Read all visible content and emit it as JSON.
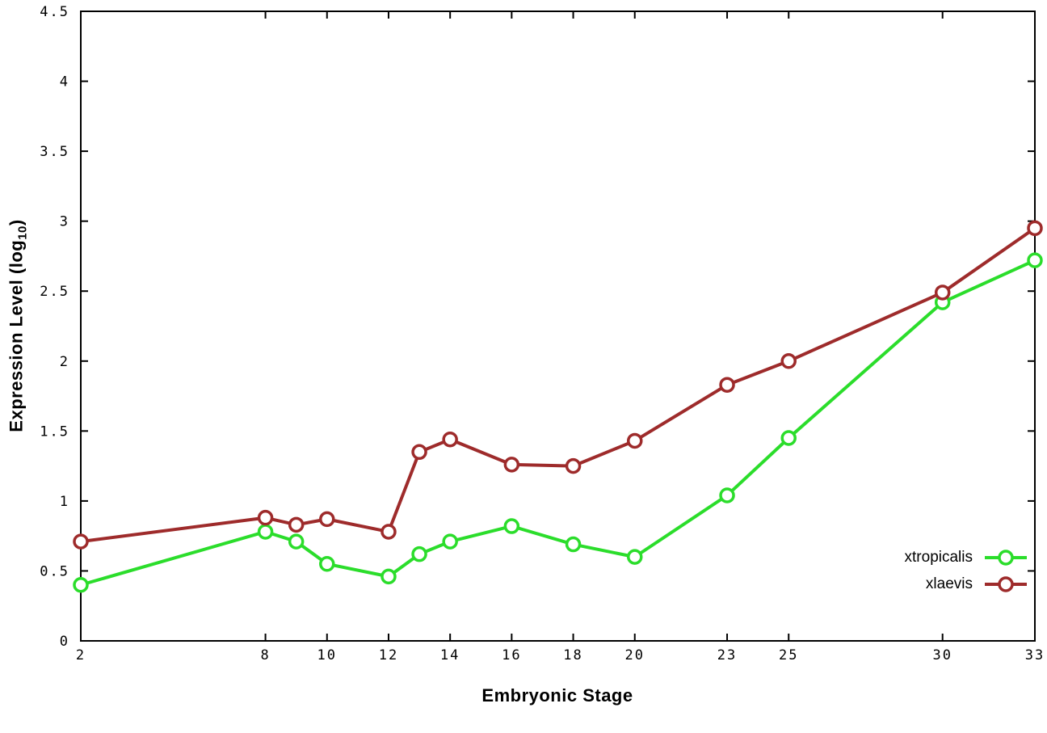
{
  "chart_data": {
    "type": "line",
    "title": "",
    "xlabel": "Embryonic Stage",
    "ylabel": "Expression Level (log10)",
    "ylabel_parts": {
      "pre": "Expression Level (log",
      "sub": "10",
      "post": ")"
    },
    "xlim": [
      2,
      33
    ],
    "ylim": [
      0,
      4.5
    ],
    "x_ticks": [
      2,
      8,
      10,
      12,
      14,
      16,
      18,
      20,
      23,
      25,
      30,
      33
    ],
    "y_ticks": [
      0,
      0.5,
      1,
      1.5,
      2,
      2.5,
      3,
      3.5,
      4,
      4.5
    ],
    "grid": false,
    "legend_position": "inside-bottom-right",
    "x": [
      2,
      8,
      9,
      10,
      12,
      13,
      14,
      16,
      18,
      20,
      23,
      25,
      30,
      33
    ],
    "series": [
      {
        "name": "xtropicalis",
        "color": "#2bdd2b",
        "values": [
          0.4,
          0.78,
          0.71,
          0.55,
          0.46,
          0.62,
          0.71,
          0.82,
          0.69,
          0.6,
          1.04,
          1.45,
          2.42,
          2.72
        ]
      },
      {
        "name": "xlaevis",
        "color": "#9e2b2b",
        "values": [
          0.71,
          0.88,
          0.83,
          0.87,
          0.78,
          1.35,
          1.44,
          1.26,
          1.25,
          1.43,
          1.83,
          2.0,
          2.49,
          2.95
        ]
      }
    ]
  }
}
